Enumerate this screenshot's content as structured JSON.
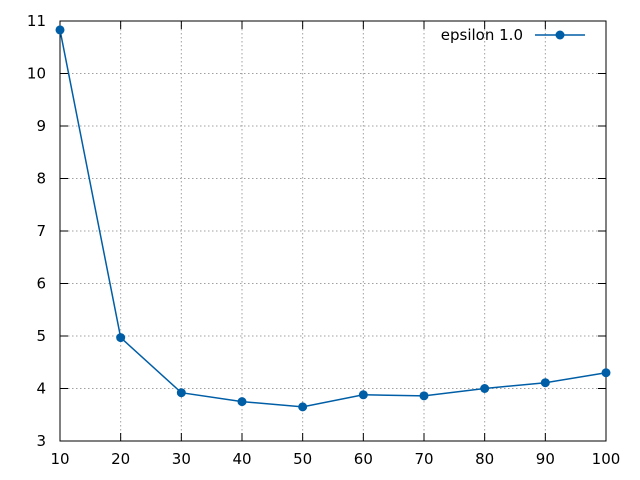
{
  "chart_data": {
    "type": "line",
    "title": "",
    "xlabel": "",
    "ylabel": "",
    "xlim": [
      10,
      100
    ],
    "ylim": [
      3,
      11
    ],
    "xticks": [
      "10",
      "20",
      "30",
      "40",
      "50",
      "60",
      "70",
      "80",
      "90",
      "100"
    ],
    "yticks": [
      "3",
      "4",
      "5",
      "6",
      "7",
      "8",
      "9",
      "10",
      "11"
    ],
    "grid": true,
    "legend_position": "top-right",
    "series": [
      {
        "name": "epsilon 1.0",
        "color": "#005ea6",
        "marker": "circle",
        "x": [
          10,
          20,
          30,
          40,
          50,
          60,
          70,
          80,
          90,
          100
        ],
        "y": [
          10.83,
          4.97,
          3.92,
          3.75,
          3.65,
          3.88,
          3.86,
          4.0,
          4.11,
          4.3
        ]
      }
    ]
  }
}
